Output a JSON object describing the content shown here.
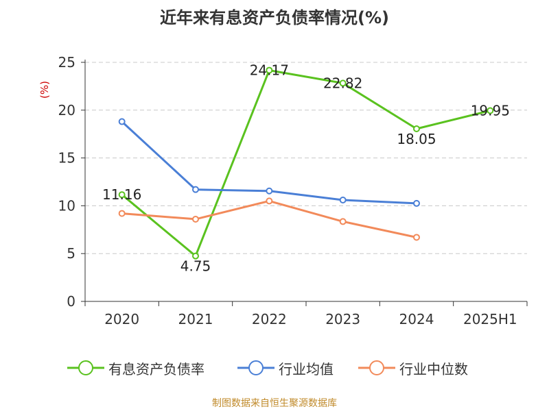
{
  "title": "近年来有息资产负债率情况(%)",
  "source": "制图数据来自恒生聚源数据库",
  "chart_data": {
    "type": "line",
    "title": "近年来有息资产负债率情况(%)",
    "ylabel": "(%)",
    "xlabel": "",
    "categories": [
      "2020",
      "2021",
      "2022",
      "2023",
      "2024",
      "2025H1"
    ],
    "ylim": [
      0,
      25
    ],
    "yticks": [
      0,
      5,
      10,
      15,
      20,
      25
    ],
    "grid": true,
    "legend_position": "bottom",
    "series": [
      {
        "name": "有息资产负债率",
        "color": "#5ac21f",
        "values": [
          11.16,
          4.75,
          24.17,
          22.82,
          18.05,
          19.95
        ],
        "labels": [
          "11.16",
          "4.75",
          "24.17",
          "22.82",
          "18.05",
          "19.95"
        ]
      },
      {
        "name": "行业均值",
        "color": "#4a7fd6",
        "values": [
          18.8,
          11.7,
          11.55,
          10.6,
          10.25,
          null
        ]
      },
      {
        "name": "行业中位数",
        "color": "#f28a5a",
        "values": [
          9.2,
          8.6,
          10.5,
          8.35,
          6.7,
          null
        ]
      }
    ]
  }
}
